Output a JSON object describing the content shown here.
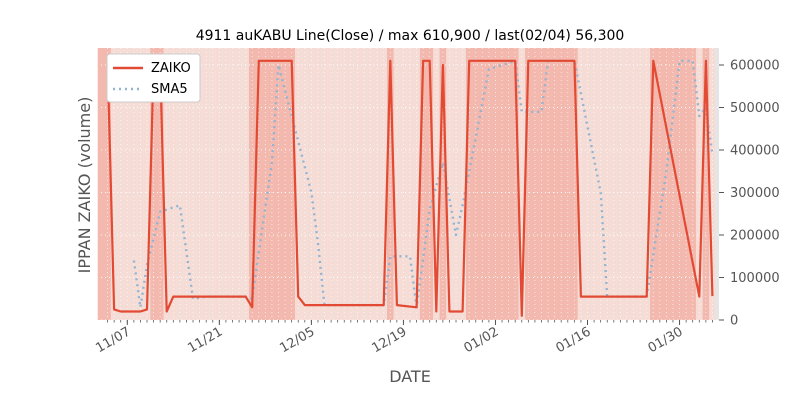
{
  "chart_data": {
    "type": "line",
    "title": "4911 auKABU Line(Close) / max 610,900 / last(02/04) 56,300",
    "xlabel": "DATE",
    "ylabel": "IPPAN ZAIKO (volume)",
    "ylim": [
      0,
      640000
    ],
    "y_ticks": [
      0,
      100000,
      200000,
      300000,
      400000,
      500000,
      600000
    ],
    "y_tick_labels": [
      "0",
      "100000",
      "200000",
      "300000",
      "400000",
      "500000",
      "600000"
    ],
    "x_ticks": [
      "2021-11-07",
      "2021-11-21",
      "2021-12-05",
      "2021-12-19",
      "2022-01-02",
      "2022-01-16",
      "2022-01-30"
    ],
    "x_tick_labels": [
      "11/07",
      "11/21",
      "12/05",
      "12/19",
      "01/02",
      "01/16",
      "01/30"
    ],
    "grid": true,
    "legend_position": "top-left",
    "colors": {
      "zaiko": "#e24a33",
      "sma5": "#92b4d2",
      "plot_bg": "#e5e5e5",
      "shade_light": "#f6dcd5",
      "shade_dark": "#f3b8ae"
    },
    "series": [
      {
        "name": "ZAIKO",
        "style": "solid",
        "points": [
          [
            "2021-11-04",
            610900
          ],
          [
            "2021-11-05",
            25000
          ],
          [
            "2021-11-06",
            20000
          ],
          [
            "2021-11-09",
            20000
          ],
          [
            "2021-11-10",
            25000
          ],
          [
            "2021-11-11",
            600000
          ],
          [
            "2021-11-12",
            600000
          ],
          [
            "2021-11-13",
            20000
          ],
          [
            "2021-11-14",
            55000
          ],
          [
            "2021-11-24",
            55000
          ],
          [
            "2021-11-25",
            55000
          ],
          [
            "2021-11-26",
            30000
          ],
          [
            "2021-11-27",
            610000
          ],
          [
            "2021-12-02",
            610000
          ],
          [
            "2021-12-03",
            55000
          ],
          [
            "2021-12-04",
            35000
          ],
          [
            "2021-12-07",
            35000
          ],
          [
            "2021-12-08",
            35000
          ],
          [
            "2021-12-16",
            35000
          ],
          [
            "2021-12-17",
            610000
          ],
          [
            "2021-12-18",
            35000
          ],
          [
            "2021-12-21",
            30000
          ],
          [
            "2021-12-22",
            610000
          ],
          [
            "2021-12-23",
            610000
          ],
          [
            "2021-12-24",
            20000
          ],
          [
            "2021-12-25",
            600000
          ],
          [
            "2021-12-26",
            20000
          ],
          [
            "2021-12-28",
            20000
          ],
          [
            "2021-12-29",
            610000
          ],
          [
            "2022-01-05",
            610000
          ],
          [
            "2022-01-06",
            10000
          ],
          [
            "2022-01-07",
            610000
          ],
          [
            "2022-01-14",
            610000
          ],
          [
            "2022-01-15",
            55000
          ],
          [
            "2022-01-25",
            55000
          ],
          [
            "2022-01-26",
            610000
          ],
          [
            "2022-02-02",
            55000
          ],
          [
            "2022-02-03",
            610000
          ],
          [
            "2022-02-04",
            56300
          ]
        ]
      },
      {
        "name": "SMA5",
        "style": "dotted",
        "points": [
          [
            "2021-11-08",
            140000
          ],
          [
            "2021-11-09",
            30000
          ],
          [
            "2021-11-10",
            130000
          ],
          [
            "2021-11-12",
            255000
          ],
          [
            "2021-11-15",
            270000
          ],
          [
            "2021-11-17",
            50000
          ],
          [
            "2021-11-19",
            55000
          ],
          [
            "2021-11-25",
            55000
          ],
          [
            "2021-11-26",
            50000
          ],
          [
            "2021-11-27",
            160000
          ],
          [
            "2021-11-29",
            370000
          ],
          [
            "2021-11-30",
            600000
          ],
          [
            "2021-12-02",
            480000
          ],
          [
            "2021-12-05",
            300000
          ],
          [
            "2021-12-06",
            180000
          ],
          [
            "2021-12-07",
            35000
          ],
          [
            "2021-12-10",
            35000
          ],
          [
            "2021-12-16",
            35000
          ],
          [
            "2021-12-17",
            150000
          ],
          [
            "2021-12-20",
            150000
          ],
          [
            "2021-12-21",
            30000
          ],
          [
            "2021-12-23",
            260000
          ],
          [
            "2021-12-25",
            370000
          ],
          [
            "2021-12-27",
            200000
          ],
          [
            "2021-12-28",
            270000
          ],
          [
            "2022-01-01",
            590000
          ],
          [
            "2022-01-05",
            610000
          ],
          [
            "2022-01-06",
            490000
          ],
          [
            "2022-01-09",
            490000
          ],
          [
            "2022-01-10",
            610000
          ],
          [
            "2022-01-14",
            610000
          ],
          [
            "2022-01-18",
            300000
          ],
          [
            "2022-01-19",
            55000
          ],
          [
            "2022-01-22",
            55000
          ],
          [
            "2022-01-25",
            55000
          ],
          [
            "2022-01-28",
            350000
          ],
          [
            "2022-01-30",
            610000
          ],
          [
            "2022-02-01",
            610000
          ],
          [
            "2022-02-02",
            480000
          ],
          [
            "2022-02-03",
            500000
          ],
          [
            "2022-02-04",
            390000
          ]
        ]
      }
    ],
    "shaded_bands": [
      [
        "2021-11-03",
        "2021-11-04"
      ],
      [
        "2021-11-11",
        "2021-11-12"
      ],
      [
        "2021-11-26",
        "2021-12-02"
      ],
      [
        "2021-12-17",
        "2021-12-17"
      ],
      [
        "2021-12-22",
        "2021-12-23"
      ],
      [
        "2021-12-25",
        "2021-12-25"
      ],
      [
        "2021-12-29",
        "2022-01-05"
      ],
      [
        "2022-01-07",
        "2022-01-14"
      ],
      [
        "2022-01-26",
        "2022-02-01"
      ],
      [
        "2022-02-03",
        "2022-02-03"
      ]
    ]
  }
}
